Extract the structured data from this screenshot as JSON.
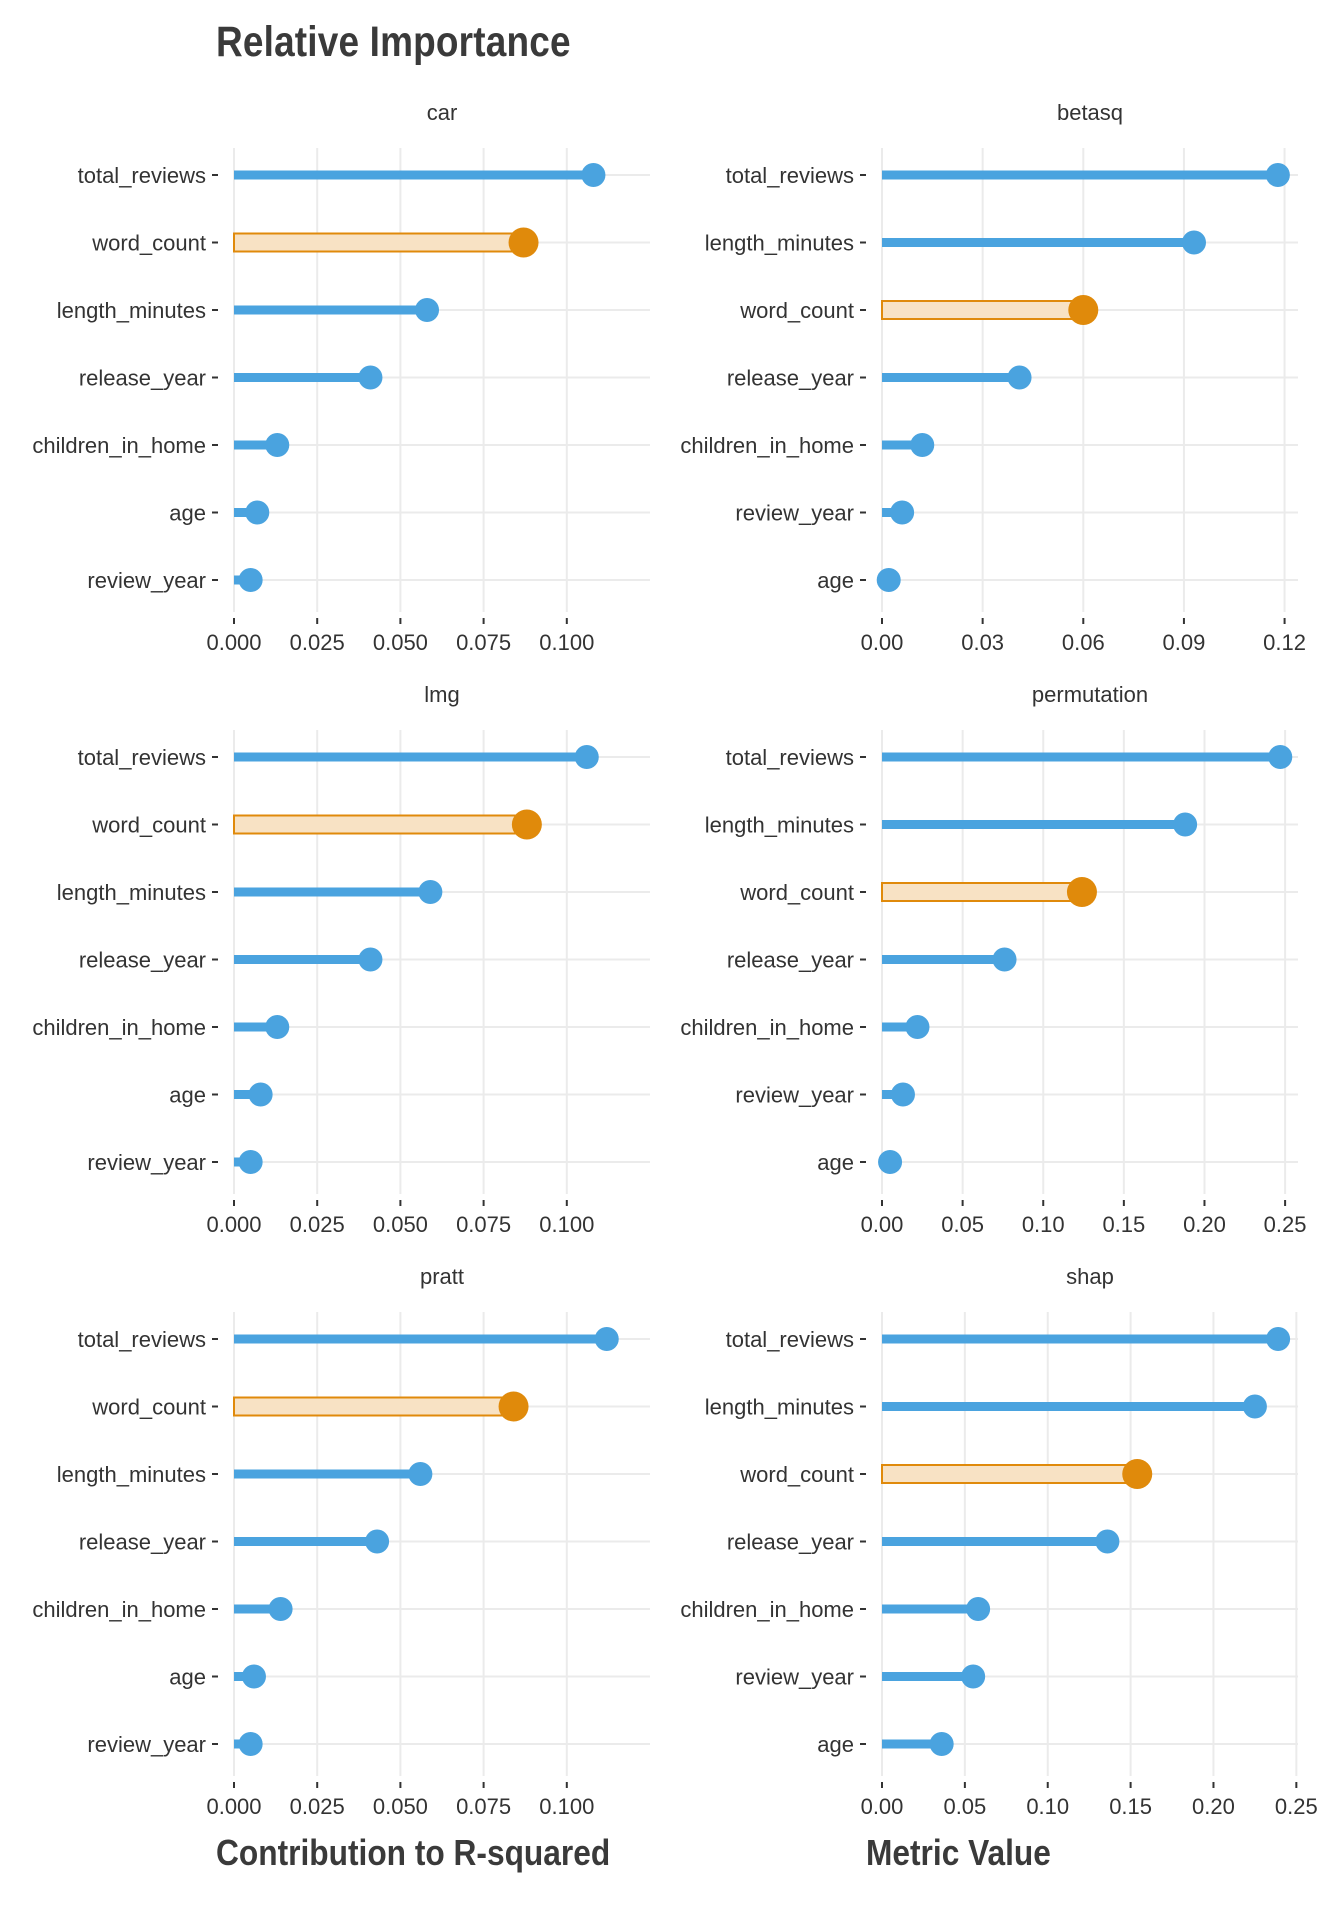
{
  "title": "Relative Importance",
  "footer": {
    "left_label": "Contribution to R-squared",
    "right_label": "Metric Value"
  },
  "colors": {
    "bar": "#4aa3df",
    "highlight": "#e08a0b",
    "highlight_fill": "#f8e2c4",
    "grid": "#ebebeb",
    "text": "#333333"
  },
  "chart_data": [
    {
      "type": "lollipop",
      "panel": "car",
      "title": "car",
      "highlight": "word_count",
      "categories": [
        "total_reviews",
        "word_count",
        "length_minutes",
        "release_year",
        "children_in_home",
        "age",
        "review_year"
      ],
      "values": [
        0.108,
        0.087,
        0.058,
        0.041,
        0.013,
        0.007,
        0.005
      ],
      "xlim": [
        0,
        0.125
      ],
      "xticks": [
        0,
        0.025,
        0.05,
        0.075,
        0.1
      ],
      "xtick_labels": [
        "0.000",
        "0.025",
        "0.050",
        "0.075",
        "0.100"
      ]
    },
    {
      "type": "lollipop",
      "panel": "betasq",
      "title": "betasq",
      "highlight": "word_count",
      "categories": [
        "total_reviews",
        "length_minutes",
        "word_count",
        "release_year",
        "children_in_home",
        "review_year",
        "age"
      ],
      "values": [
        0.118,
        0.093,
        0.06,
        0.041,
        0.012,
        0.006,
        0.002
      ],
      "xlim": [
        0,
        0.124
      ],
      "xticks": [
        0,
        0.03,
        0.06,
        0.09,
        0.12
      ],
      "xtick_labels": [
        "0.00",
        "0.03",
        "0.06",
        "0.09",
        "0.12"
      ]
    },
    {
      "type": "lollipop",
      "panel": "lmg",
      "title": "lmg",
      "highlight": "word_count",
      "categories": [
        "total_reviews",
        "word_count",
        "length_minutes",
        "release_year",
        "children_in_home",
        "age",
        "review_year"
      ],
      "values": [
        0.106,
        0.088,
        0.059,
        0.041,
        0.013,
        0.008,
        0.005
      ],
      "xlim": [
        0,
        0.125
      ],
      "xticks": [
        0,
        0.025,
        0.05,
        0.075,
        0.1
      ],
      "xtick_labels": [
        "0.000",
        "0.025",
        "0.050",
        "0.075",
        "0.100"
      ]
    },
    {
      "type": "lollipop",
      "panel": "permutation",
      "title": "permutation",
      "highlight": "word_count",
      "categories": [
        "total_reviews",
        "length_minutes",
        "word_count",
        "release_year",
        "children_in_home",
        "review_year",
        "age"
      ],
      "values": [
        0.247,
        0.188,
        0.124,
        0.076,
        0.022,
        0.013,
        0.005
      ],
      "xlim": [
        0,
        0.258
      ],
      "xticks": [
        0,
        0.05,
        0.1,
        0.15,
        0.2,
        0.25
      ],
      "xtick_labels": [
        "0.00",
        "0.05",
        "0.10",
        "0.15",
        "0.20",
        "0.25"
      ]
    },
    {
      "type": "lollipop",
      "panel": "pratt",
      "title": "pratt",
      "highlight": "word_count",
      "categories": [
        "total_reviews",
        "word_count",
        "length_minutes",
        "release_year",
        "children_in_home",
        "age",
        "review_year"
      ],
      "values": [
        0.112,
        0.084,
        0.056,
        0.043,
        0.014,
        0.006,
        0.005
      ],
      "xlim": [
        0,
        0.125
      ],
      "xticks": [
        0,
        0.025,
        0.05,
        0.075,
        0.1
      ],
      "xtick_labels": [
        "0.000",
        "0.025",
        "0.050",
        "0.075",
        "0.100"
      ]
    },
    {
      "type": "lollipop",
      "panel": "shap",
      "title": "shap",
      "highlight": "word_count",
      "categories": [
        "total_reviews",
        "length_minutes",
        "word_count",
        "release_year",
        "children_in_home",
        "review_year",
        "age"
      ],
      "values": [
        0.239,
        0.225,
        0.154,
        0.136,
        0.058,
        0.055,
        0.036
      ],
      "xlim": [
        0,
        0.251
      ],
      "xticks": [
        0,
        0.05,
        0.1,
        0.15,
        0.2,
        0.25
      ],
      "xtick_labels": [
        "0.00",
        "0.05",
        "0.10",
        "0.15",
        "0.20",
        "0.25"
      ]
    }
  ]
}
